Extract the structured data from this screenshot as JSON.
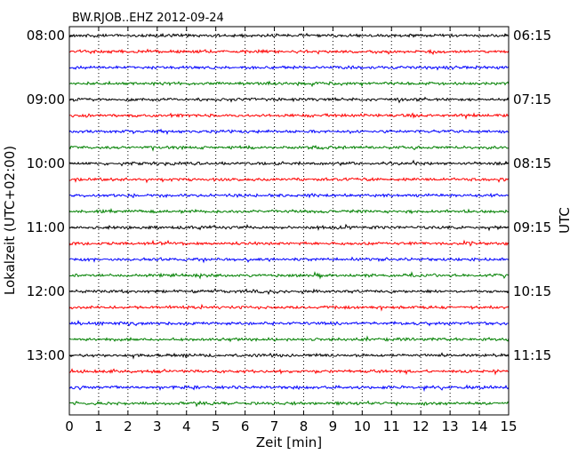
{
  "chart_data": {
    "type": "line",
    "title": "BW.RJOB..EHZ 2012-09-24",
    "xlabel": "Zeit  [min]",
    "ylabel_left": "Lokalzeit (UTC+02:00)",
    "ylabel_right": "UTC",
    "xlim": [
      0,
      15
    ],
    "x_ticks": [
      0,
      1,
      2,
      3,
      4,
      5,
      6,
      7,
      8,
      9,
      10,
      11,
      12,
      13,
      14,
      15
    ],
    "trace_interval_minutes": 15,
    "trace_count": 24,
    "trace_colors": [
      "#000000",
      "#ff0000",
      "#0000ff",
      "#008000"
    ],
    "left_ticks": [
      "08:00",
      "09:00",
      "10:00",
      "11:00",
      "12:00",
      "13:00"
    ],
    "right_ticks": [
      "06:15",
      "07:15",
      "08:15",
      "09:15",
      "10:15",
      "11:15"
    ],
    "grid": "vertical dotted"
  }
}
